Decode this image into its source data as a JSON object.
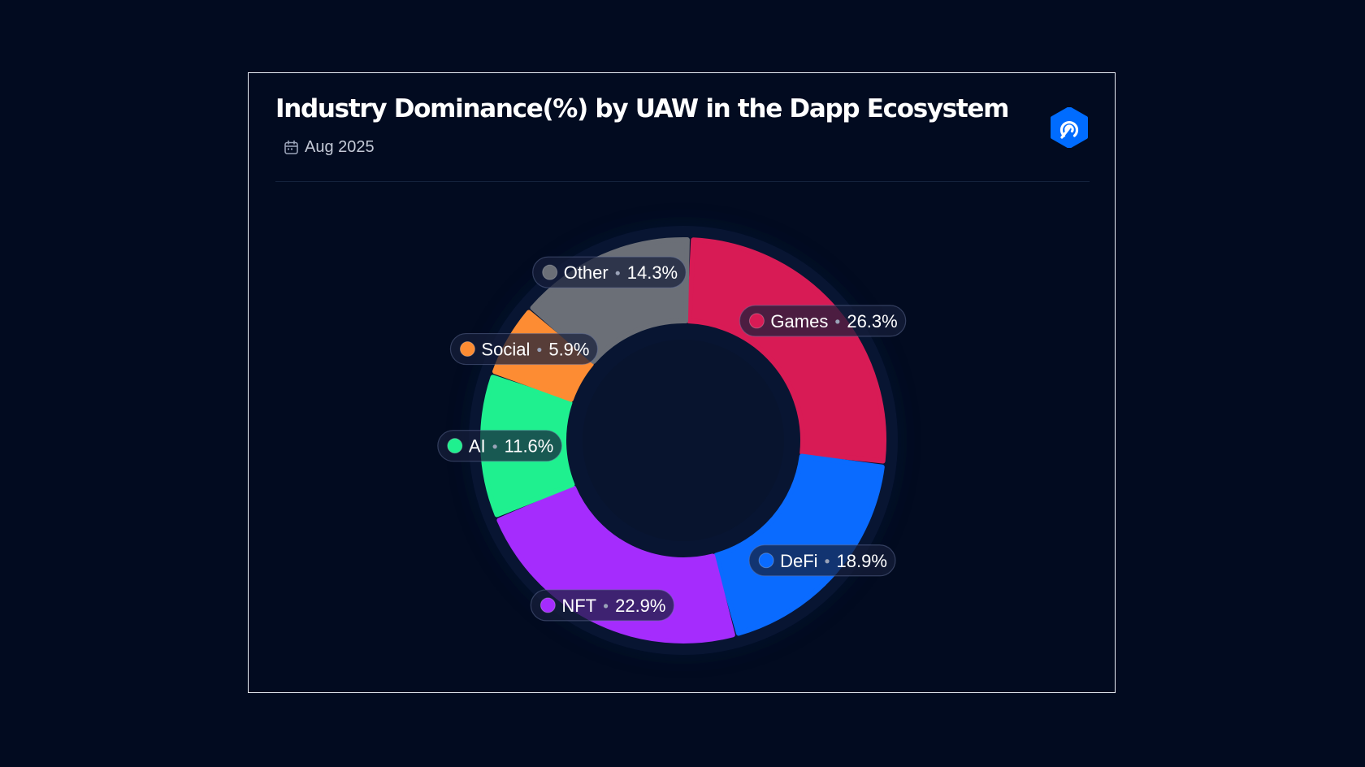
{
  "header": {
    "title": "Industry Dominance(%) by UAW in the Dapp Ecosystem",
    "date": "Aug 2025",
    "date_icon": "calendar-icon",
    "brand_icon": "dappradar-logo-icon",
    "brand_color": "#006cff"
  },
  "chart_data": {
    "type": "pie",
    "variant": "donut",
    "title": "Industry Dominance(%) by UAW in the Dapp Ecosystem",
    "subtitle": "Aug 2025",
    "unit": "%",
    "slices": [
      {
        "label": "Games",
        "value": 26.3,
        "display": "26.3%",
        "color": "#d81b55"
      },
      {
        "label": "DeFi",
        "value": 18.9,
        "display": "18.9%",
        "color": "#0a6bff"
      },
      {
        "label": "NFT",
        "value": 22.9,
        "display": "22.9%",
        "color": "#a52cfd"
      },
      {
        "label": "AI",
        "value": 11.6,
        "display": "11.6%",
        "color": "#1ff08f"
      },
      {
        "label": "Social",
        "value": 5.9,
        "display": "5.9%",
        "color": "#fd8c33"
      },
      {
        "label": "Other",
        "value": 14.3,
        "display": "14.3%",
        "color": "#6b6f77"
      }
    ],
    "legend": "inline labels on slices"
  }
}
